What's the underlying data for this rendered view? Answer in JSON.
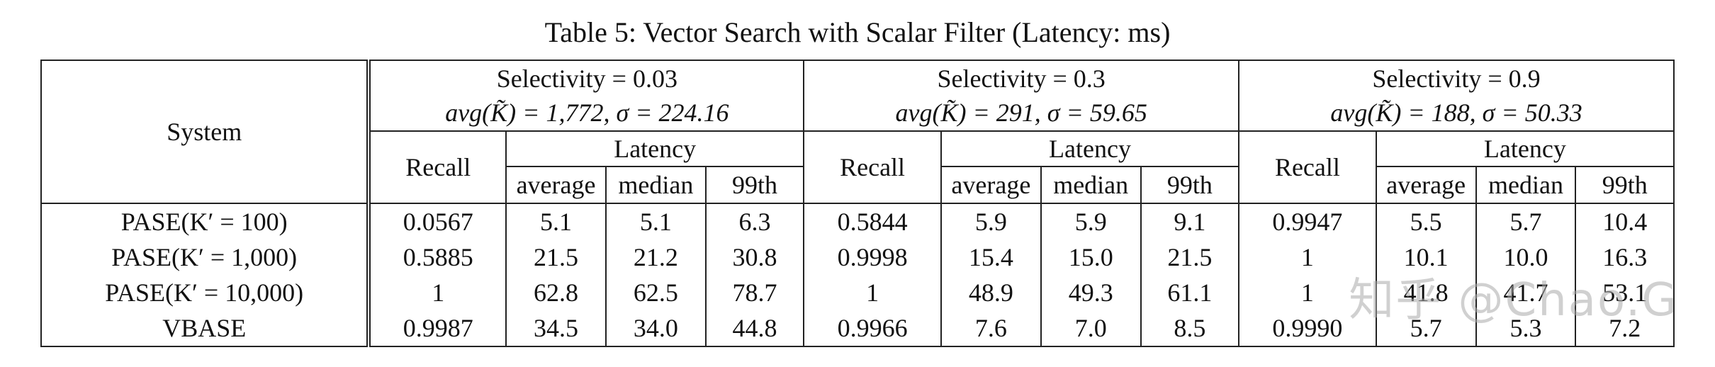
{
  "caption": "Table 5: Vector Search with Scalar Filter (Latency: ms)",
  "header": {
    "system": "System",
    "groups": [
      {
        "selectivity": "Selectivity  = 0.03",
        "stats": "avg(K̃) = 1,772, σ = 224.16"
      },
      {
        "selectivity": "Selectivity  = 0.3",
        "stats": "avg(K̃) = 291, σ = 59.65"
      },
      {
        "selectivity": "Selectivity  = 0.9",
        "stats": "avg(K̃) = 188, σ = 50.33"
      }
    ],
    "recall": "Recall",
    "latency": "Latency",
    "average": "average",
    "median": "median",
    "p99": "99th"
  },
  "rows": [
    {
      "system": "PASE(K′ = 100)",
      "cells": [
        "0.0567",
        "5.1",
        "5.1",
        "6.3",
        "0.5844",
        "5.9",
        "5.9",
        "9.1",
        "0.9947",
        "5.5",
        "5.7",
        "10.4"
      ]
    },
    {
      "system": "PASE(K′ = 1,000)",
      "cells": [
        "0.5885",
        "21.5",
        "21.2",
        "30.8",
        "0.9998",
        "15.4",
        "15.0",
        "21.5",
        "1",
        "10.1",
        "10.0",
        "16.3"
      ]
    },
    {
      "system": "PASE(K′ = 10,000)",
      "cells": [
        "1",
        "62.8",
        "62.5",
        "78.7",
        "1",
        "48.9",
        "49.3",
        "61.1",
        "1",
        "41.8",
        "41.7",
        "53.1"
      ]
    },
    {
      "system": "VBASE",
      "cells": [
        "0.9987",
        "34.5",
        "34.0",
        "44.8",
        "0.9966",
        "7.6",
        "7.0",
        "8.5",
        "0.9990",
        "5.7",
        "5.3",
        "7.2"
      ]
    }
  ],
  "watermark": "知乎 @Chao.G"
}
